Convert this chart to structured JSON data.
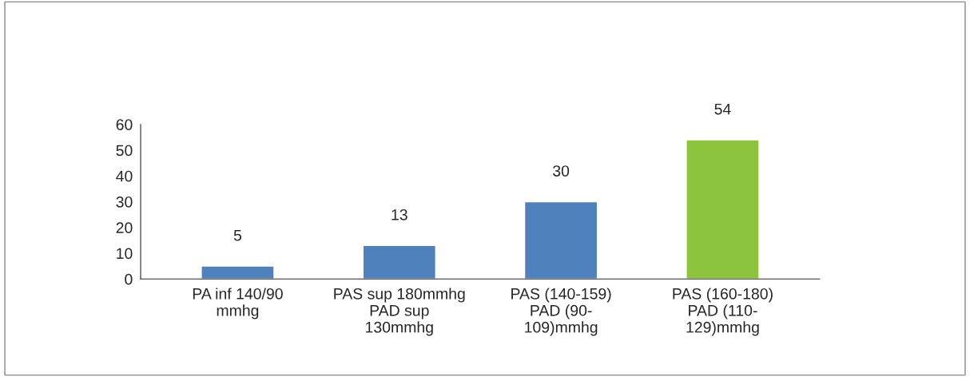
{
  "chart_data": {
    "type": "bar",
    "categories": [
      "PA inf 140/90\nmmhg",
      "PAS sup 180mmhg\nPAD sup\n130mmhg",
      "PAS (140-159)\nPAD (90-\n109)mmhg",
      "PAS (160-180)\nPAD (110-\n129)mmhg"
    ],
    "values": [
      5,
      13,
      30,
      54
    ],
    "colors": [
      "#4f81bd",
      "#4f81bd",
      "#4f81bd",
      "#8cc43c"
    ],
    "ylim": [
      0,
      60
    ],
    "yticks": [
      0,
      10,
      20,
      30,
      40,
      50,
      60
    ],
    "data_labels": true,
    "grid": false
  }
}
